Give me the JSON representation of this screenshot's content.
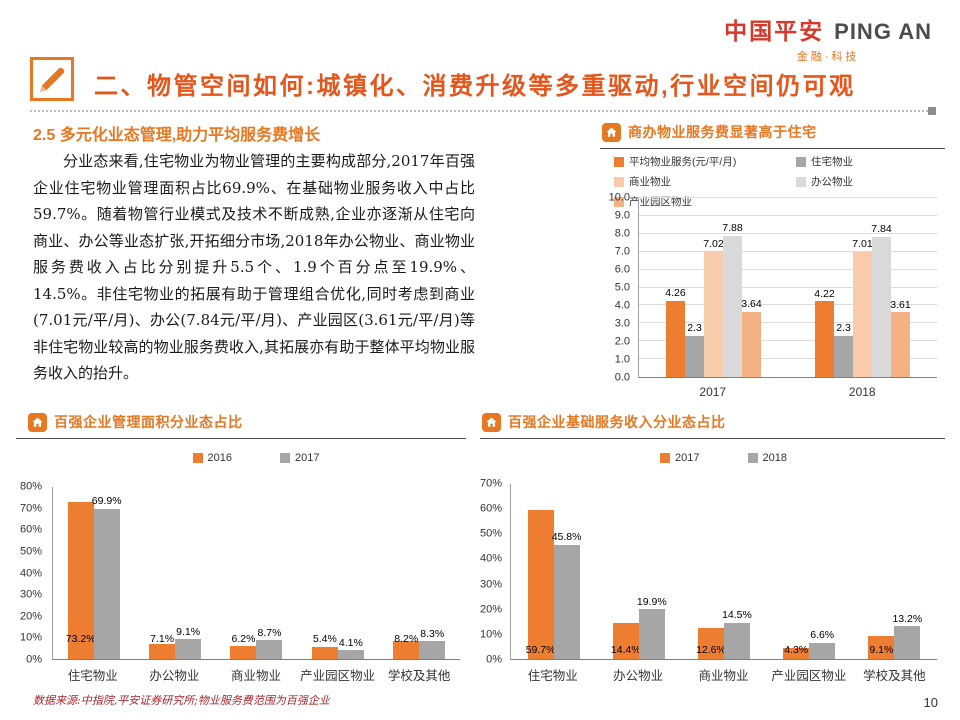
{
  "logo": {
    "cn": "中国平安",
    "en": "PING AN",
    "sub": "金融·科技"
  },
  "header": {
    "title": "二、物管空间如何:城镇化、消费升级等多重驱动,行业空间仍可观"
  },
  "section": {
    "heading": "2.5 多元化业态管理,助力平均服务费增长",
    "body": "分业态来看,住宅物业为物业管理的主要构成部分,2017年百强企业住宅物业管理面积占比69.9%、在基础物业服务收入中占比59.7%。随着物管行业模式及技术不断成熟,企业亦逐渐从住宅向商业、办公等业态扩张,开拓细分市场,2018年办公物业、商业物业服务费收入占比分别提升5.5个、1.9个百分点至19.9%、14.5%。非住宅物业的拓展有助于管理组合优化,同时考虑到商业(7.01元/平/月)、办公(7.84元/平/月)、产业园区(3.61元/平/月)等非住宅物业较高的物业服务费收入,其拓展亦有助于整体平均物业服务收入的抬升。"
  },
  "footer": {
    "source_note": "数据来源:中指院,平安证券研究所;物业服务费范围为百强企业",
    "page_number": "10"
  },
  "colors": {
    "accent_orange": "#E87722",
    "title_orange_red": "#E4561C",
    "brand_red": "#D6382B",
    "bar_orange": "#ED7D31",
    "bar_gray": "#A6A6A6",
    "bar_peach": "#F8CBAD",
    "bar_lightgray": "#D9D9D9",
    "bar_midorange": "#F4B183"
  },
  "chart_data": [
    {
      "type": "bar",
      "title": "商办物业服务费显著高于住宅",
      "categories": [
        "2017",
        "2018"
      ],
      "series": [
        {
          "name": "平均物业服务(元/平/月)",
          "color": "#ED7D31",
          "values": [
            4.26,
            4.22
          ]
        },
        {
          "name": "住宅物业",
          "color": "#A6A6A6",
          "values": [
            2.3,
            2.3
          ]
        },
        {
          "name": "商业物业",
          "color": "#F8CBAD",
          "values": [
            7.02,
            7.01
          ]
        },
        {
          "name": "办公物业",
          "color": "#D9D9D9",
          "values": [
            7.88,
            7.84
          ]
        },
        {
          "name": "产业园区物业",
          "color": "#F4B183",
          "values": [
            3.64,
            3.61
          ]
        }
      ],
      "ylim": [
        0,
        10
      ],
      "ytick_step": 1,
      "ytick_decimals": 1,
      "ytick_suffix": "",
      "label_suffix": "",
      "grid": true,
      "legend_position": "top-left"
    },
    {
      "type": "bar",
      "title": "百强企业管理面积分业态占比",
      "categories": [
        "住宅物业",
        "办公物业",
        "商业物业",
        "产业园区物业",
        "学校及其他"
      ],
      "series": [
        {
          "name": "2016",
          "color": "#ED7D31",
          "values": [
            73.2,
            7.1,
            6.2,
            5.4,
            8.2
          ]
        },
        {
          "name": "2017",
          "color": "#A6A6A6",
          "values": [
            69.9,
            9.1,
            8.7,
            4.1,
            8.3
          ]
        }
      ],
      "ylim": [
        0,
        80
      ],
      "ytick_step": 10,
      "ytick_decimals": 0,
      "ytick_suffix": "%",
      "label_suffix": "%",
      "grid": false,
      "legend_position": "top-center"
    },
    {
      "type": "bar",
      "title": "百强企业基础服务收入分业态占比",
      "categories": [
        "住宅物业",
        "办公物业",
        "商业物业",
        "产业园区物业",
        "学校及其他"
      ],
      "series": [
        {
          "name": "2017",
          "color": "#ED7D31",
          "values": [
            59.7,
            14.4,
            12.6,
            4.3,
            9.1
          ]
        },
        {
          "name": "2018",
          "color": "#A6A6A6",
          "values": [
            45.8,
            19.9,
            14.5,
            6.6,
            13.2
          ]
        }
      ],
      "ylim": [
        0,
        70
      ],
      "ytick_step": 10,
      "ytick_decimals": 0,
      "ytick_suffix": "%",
      "label_suffix": "%",
      "grid": false,
      "legend_position": "top-center"
    }
  ]
}
